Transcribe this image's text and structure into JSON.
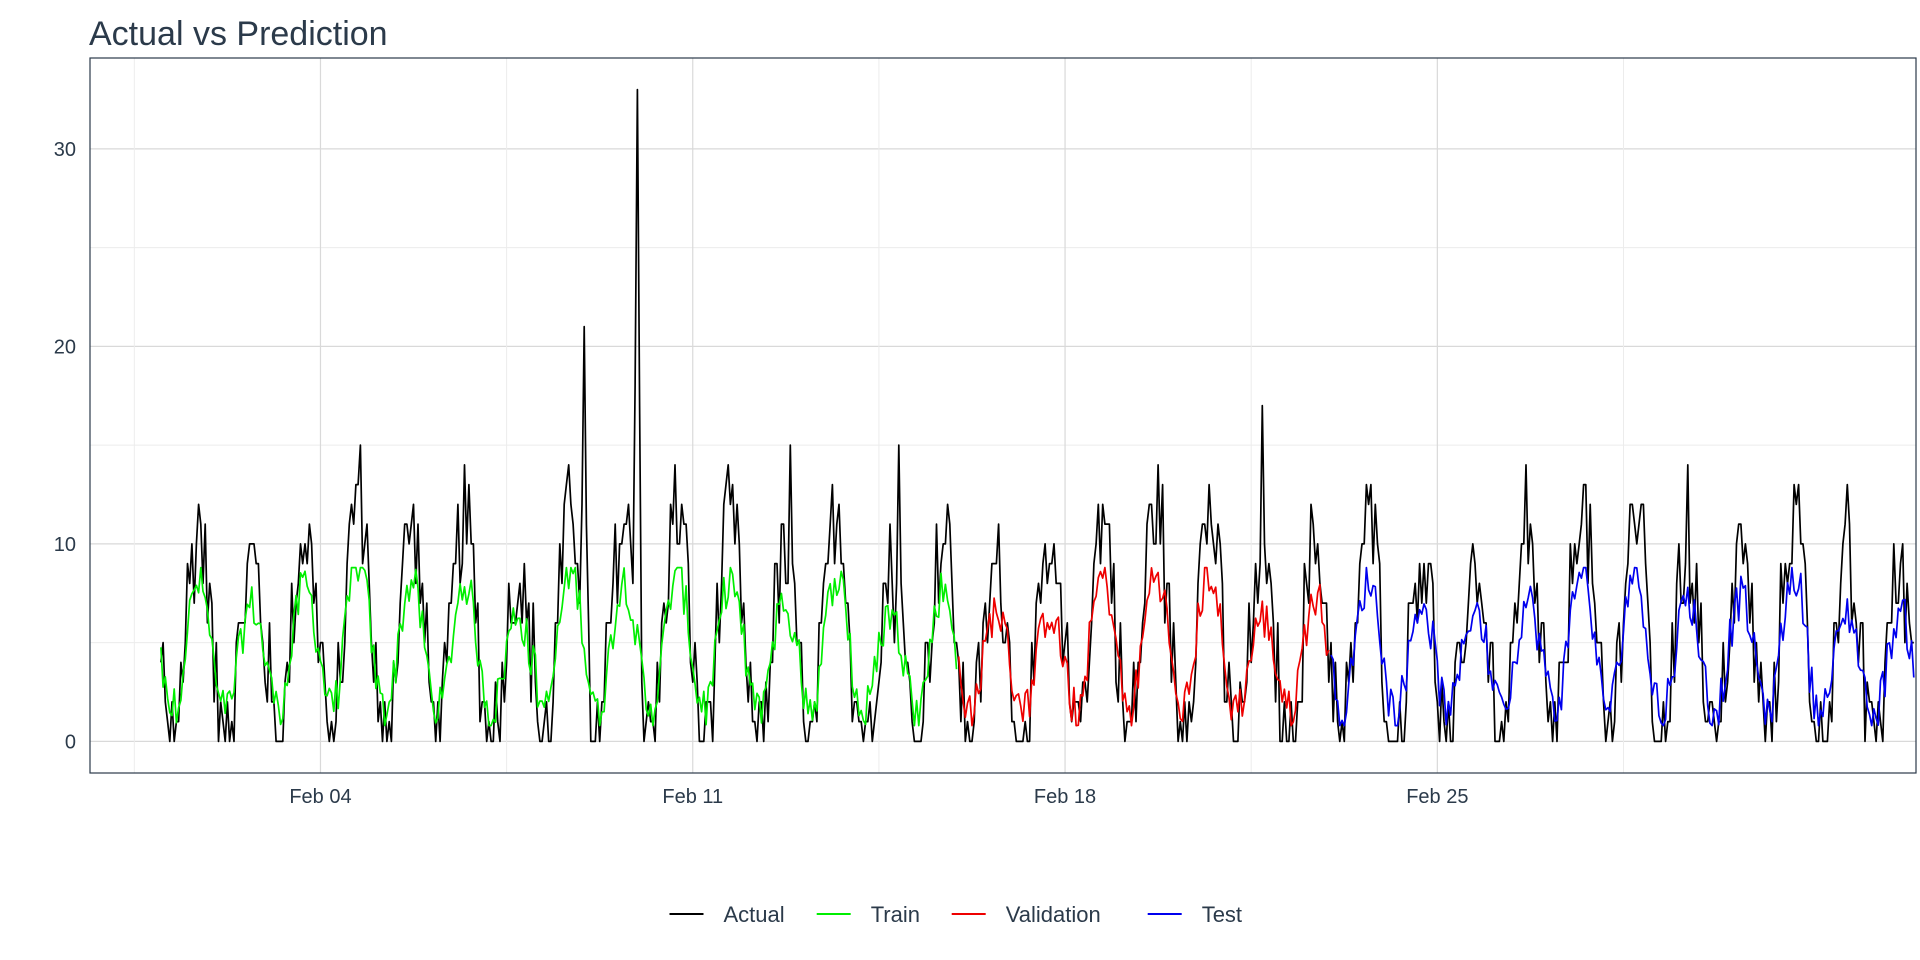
{
  "chart_data": {
    "type": "line",
    "title": "Actual vs Prediction",
    "xlabel": "",
    "ylabel": "",
    "x_axis": {
      "type": "date",
      "min": "2024-01-30T16:00",
      "max": "2024-03-05T00:00",
      "ticks": [
        {
          "date": "2024-02-04",
          "label": "Feb 04"
        },
        {
          "date": "2024-02-11",
          "label": "Feb 11"
        },
        {
          "date": "2024-02-18",
          "label": "Feb 18"
        },
        {
          "date": "2024-02-25",
          "label": "Feb 25"
        }
      ]
    },
    "y_axis": {
      "min": -1.6,
      "max": 34.6,
      "ticks": [
        0,
        10,
        20,
        30
      ],
      "tick_labels": [
        "0",
        "10",
        "20",
        "30"
      ]
    },
    "grid": true,
    "legend_position": "bottom",
    "sampling": "hourly",
    "series": [
      {
        "name": "Actual",
        "color": "#000000",
        "start": "2024-02-01T00:00",
        "end": "2024-03-04T23:00",
        "peaks": [
          {
            "time": "2024-02-08T23:00",
            "value": 21
          },
          {
            "time": "2024-02-09T23:00",
            "value": 33
          },
          {
            "time": "2024-02-12T20:00",
            "value": 15
          },
          {
            "time": "2024-02-14T21:00",
            "value": 15
          },
          {
            "time": "2024-02-21T17:00",
            "value": 17
          },
          {
            "time": "2024-02-26T16:00",
            "value": 14
          },
          {
            "time": "2024-02-29T17:00",
            "value": 14
          },
          {
            "time": "2024-03-03T17:00",
            "value": 13
          }
        ]
      },
      {
        "name": "Train",
        "color": "#00ee00",
        "start": "2024-02-01T00:00",
        "end": "2024-02-15T23:00"
      },
      {
        "name": "Validation",
        "color": "#ee0000",
        "start": "2024-02-16T00:00",
        "end": "2024-02-22T23:00"
      },
      {
        "name": "Test",
        "color": "#0000ee",
        "start": "2024-02-23T00:00",
        "end": "2024-03-04T23:00"
      }
    ]
  }
}
